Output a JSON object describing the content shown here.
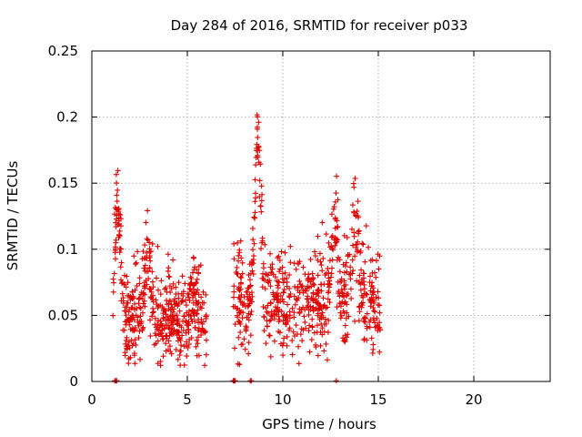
{
  "chart_data": {
    "type": "scatter",
    "title": "Day 284 of 2016, SRMTID for receiver p033",
    "xlabel": "GPS time / hours",
    "ylabel": "SRMTID / TECUs",
    "xlim": [
      0,
      24
    ],
    "ylim": [
      0,
      0.25
    ],
    "xticks": [
      0,
      5,
      10,
      15,
      20
    ],
    "yticks": [
      0,
      0.05,
      0.1,
      0.15,
      0.2,
      0.25
    ],
    "xtick_labels": [
      "0",
      "5",
      "10",
      "15",
      "20"
    ],
    "ytick_labels": [
      "0",
      "0.05",
      "0.1",
      "0.15",
      "0.2",
      "0.25"
    ],
    "grid": true,
    "marker": "+",
    "marker_color": "#e00000",
    "series": [
      {
        "name": "SRMTID",
        "segments": [
          {
            "x_start": 1.1,
            "x_end": 6.0,
            "samples": 520,
            "baseline": 0.048,
            "spread": 0.016,
            "bursts": [
              [
                1.35,
                0.08
              ],
              [
                2.9,
                0.05
              ],
              [
                5.3,
                0.02
              ]
            ]
          },
          {
            "x_start": 7.4,
            "x_end": 15.1,
            "samples": 700,
            "baseline": 0.06,
            "spread": 0.018,
            "bursts": [
              [
                8.7,
                0.13
              ],
              [
                12.7,
                0.07
              ],
              [
                13.8,
                0.06
              ]
            ]
          }
        ],
        "zero_points_x": [
          1.2,
          1.25,
          1.3,
          7.4,
          7.45,
          7.5,
          8.3,
          8.35,
          12.8
        ]
      }
    ]
  }
}
